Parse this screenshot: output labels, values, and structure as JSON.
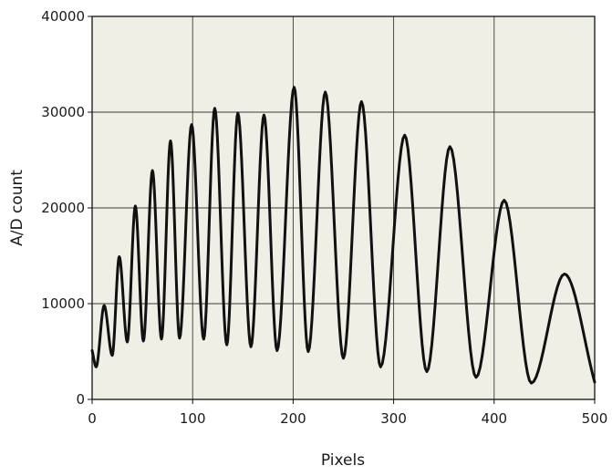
{
  "chart_data": {
    "type": "line",
    "title": "",
    "xlabel": "Pixels",
    "ylabel": "A/D count",
    "xlim": [
      0,
      500
    ],
    "ylim": [
      0,
      40000
    ],
    "xticks": [
      0,
      100,
      200,
      300,
      400,
      500
    ],
    "yticks": [
      0,
      10000,
      20000,
      30000,
      40000
    ],
    "xtick_labels": [
      "0",
      "100",
      "200",
      "300",
      "400",
      "500"
    ],
    "ytick_labels": [
      "0",
      "10000",
      "20000",
      "30000",
      "40000"
    ],
    "grid": true,
    "legend": "none",
    "colors": {
      "plot_background": "#f0efe6",
      "grid": "#3a3a3a",
      "line": "#111111",
      "axis": "#111111"
    },
    "series": [
      {
        "x": [
          0,
          4,
          12,
          20,
          27,
          35,
          43,
          51,
          60,
          69,
          78,
          87,
          99,
          111,
          122,
          134,
          145,
          158,
          171,
          184,
          201,
          215,
          232,
          250,
          268,
          287,
          311,
          333,
          356,
          382,
          410,
          437,
          470,
          500
        ],
        "values": [
          5100,
          3400,
          9800,
          4600,
          14900,
          6000,
          20200,
          6100,
          23900,
          6300,
          27000,
          6400,
          28700,
          6300,
          30400,
          5700,
          29900,
          5500,
          29700,
          5100,
          32600,
          5000,
          32100,
          4300,
          31100,
          3400,
          27600,
          2900,
          26400,
          2300,
          20800,
          1700,
          13100,
          1800
        ]
      }
    ]
  }
}
